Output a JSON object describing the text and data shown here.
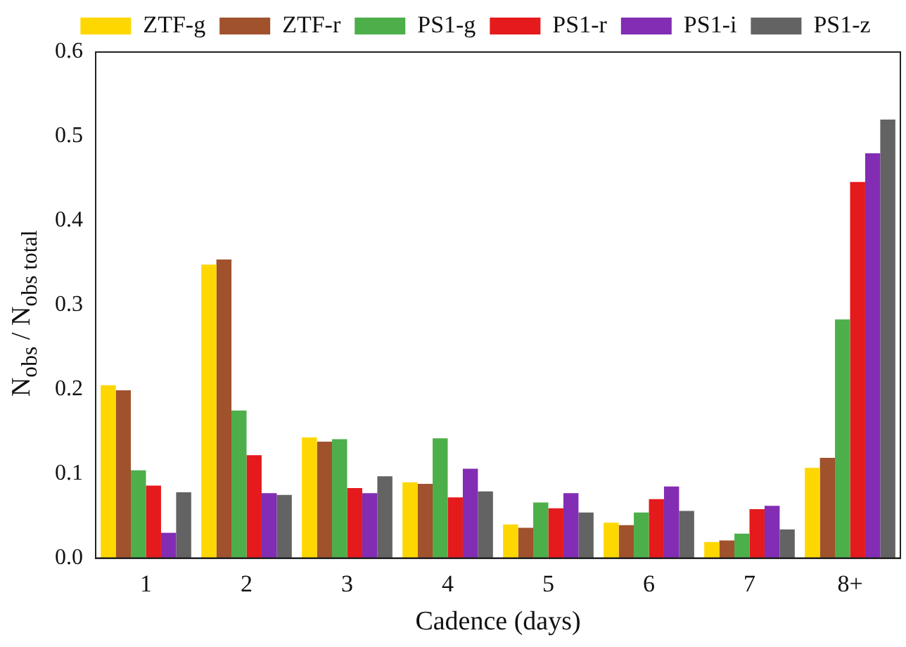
{
  "chart_data": {
    "type": "bar",
    "xlabel": "Cadence (days)",
    "ylabel": "N$_{obs}$ / N$_{obs total}$",
    "categories": [
      "1",
      "2",
      "3",
      "4",
      "5",
      "6",
      "7",
      "8+"
    ],
    "series": [
      {
        "name": "ZTF-g",
        "color": "#ffd700",
        "values": [
          0.205,
          0.348,
          0.143,
          0.09,
          0.04,
          0.042,
          0.019,
          0.107
        ]
      },
      {
        "name": "ZTF-r",
        "color": "#a0522d",
        "values": [
          0.199,
          0.354,
          0.138,
          0.088,
          0.036,
          0.039,
          0.021,
          0.119
        ]
      },
      {
        "name": "PS1-g",
        "color": "#4daf4a",
        "values": [
          0.104,
          0.175,
          0.141,
          0.142,
          0.066,
          0.054,
          0.029,
          0.283
        ]
      },
      {
        "name": "PS1-r",
        "color": "#e41a1c",
        "values": [
          0.086,
          0.122,
          0.083,
          0.072,
          0.059,
          0.07,
          0.058,
          0.446
        ]
      },
      {
        "name": "PS1-i",
        "color": "#822db4",
        "values": [
          0.03,
          0.077,
          0.077,
          0.106,
          0.077,
          0.085,
          0.062,
          0.48
        ]
      },
      {
        "name": "PS1-z",
        "color": "#636363",
        "values": [
          0.078,
          0.075,
          0.097,
          0.079,
          0.054,
          0.056,
          0.034,
          0.52
        ]
      }
    ],
    "ylim": [
      0,
      0.6
    ],
    "yticks": [
      {
        "value": 0,
        "label": "0.0"
      },
      0.1,
      0.2,
      0.3,
      0.4,
      0.5,
      0.6
    ],
    "grid": false,
    "legend": "top"
  }
}
